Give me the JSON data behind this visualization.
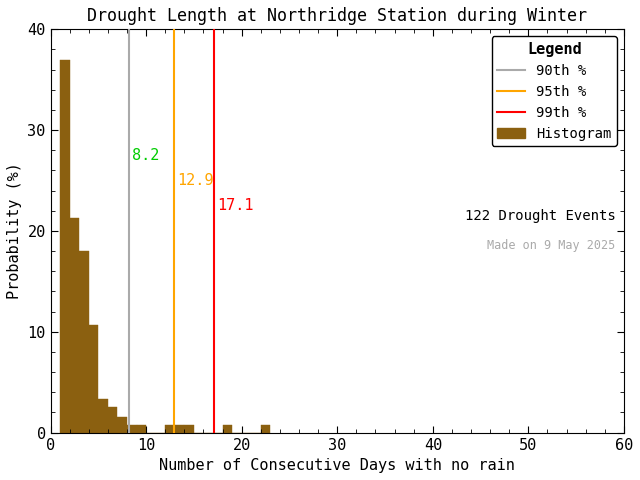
{
  "title": "Drought Length at Northridge Station during Winter",
  "xlabel": "Number of Consecutive Days with no rain",
  "ylabel": "Probability (%)",
  "xlim": [
    0,
    60
  ],
  "ylim": [
    0,
    40
  ],
  "xticks": [
    0,
    10,
    20,
    30,
    40,
    50,
    60
  ],
  "yticks": [
    0,
    10,
    20,
    30,
    40
  ],
  "bar_color": "#8B6010",
  "bar_edge_color": "#8B6010",
  "background_color": "#ffffff",
  "n_drought_events": 122,
  "made_on": "Made on 9 May 2025",
  "percentile_90": 8.2,
  "percentile_95": 12.9,
  "percentile_99": 17.1,
  "percentile_90_color": "#aaaaaa",
  "percentile_95_color": "#ffa500",
  "percentile_99_color": "#ff0000",
  "label_90": "8.2",
  "label_95": "12.9",
  "label_99": "17.1",
  "label_90_color": "#00cc00",
  "label_95_color": "#ffa500",
  "label_99_color": "#ff0000",
  "bin_starts": [
    1,
    2,
    3,
    4,
    5,
    6,
    7,
    8,
    9,
    10,
    11,
    12,
    13,
    14,
    15,
    16,
    17,
    18,
    19,
    20,
    21,
    22
  ],
  "bin_probs": [
    37.0,
    21.3,
    18.0,
    10.7,
    3.3,
    2.5,
    1.6,
    0.8,
    0.8,
    0.0,
    0.0,
    0.8,
    0.8,
    0.8,
    0.0,
    0.0,
    0.0,
    0.8,
    0.0,
    0.0,
    0.0,
    0.8
  ],
  "title_fontsize": 12,
  "label_fontsize": 11,
  "tick_fontsize": 11,
  "legend_fontsize": 10,
  "annot_fontsize": 11
}
